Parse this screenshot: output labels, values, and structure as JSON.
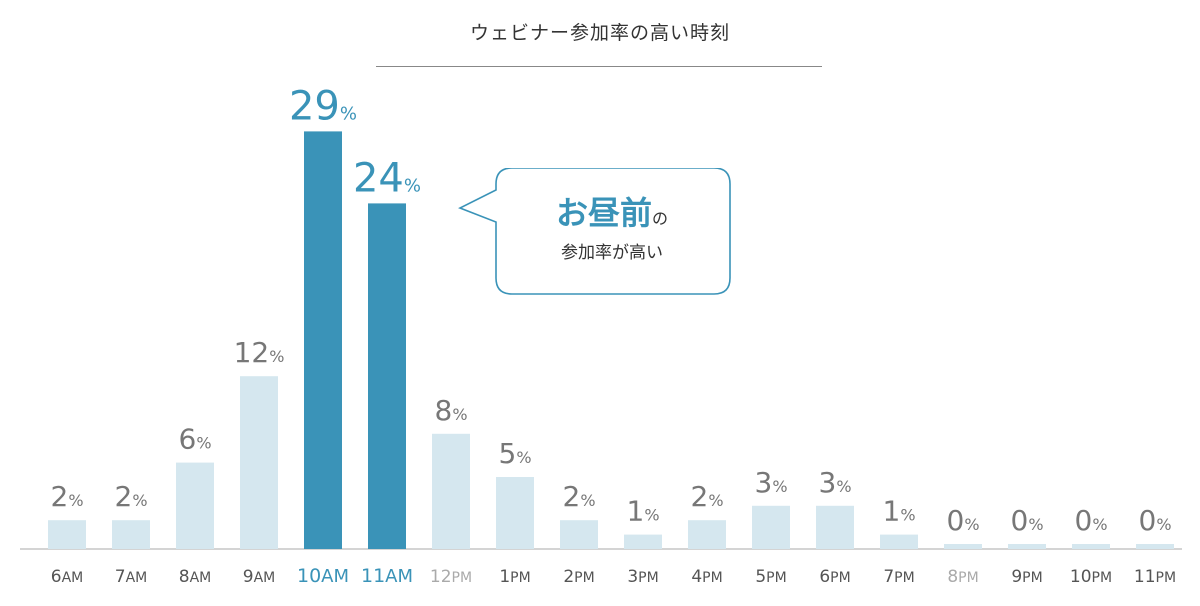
{
  "chart_data": {
    "type": "bar",
    "title": "ウェビナー参加率の高い時刻",
    "categories": [
      "6AM",
      "7AM",
      "8AM",
      "9AM",
      "10AM",
      "11AM",
      "12PM",
      "1PM",
      "2PM",
      "3PM",
      "4PM",
      "5PM",
      "6PM",
      "7PM",
      "8PM",
      "9PM",
      "10PM",
      "11PM"
    ],
    "category_labels": [
      {
        "num": "6",
        "suffix": "AM"
      },
      {
        "num": "7",
        "suffix": "AM"
      },
      {
        "num": "8",
        "suffix": "AM"
      },
      {
        "num": "9",
        "suffix": "AM"
      },
      {
        "num": "10",
        "suffix": "AM"
      },
      {
        "num": "11",
        "suffix": "AM"
      },
      {
        "num": "12",
        "suffix": "PM"
      },
      {
        "num": "1",
        "suffix": "PM"
      },
      {
        "num": "2",
        "suffix": "PM"
      },
      {
        "num": "3",
        "suffix": "PM"
      },
      {
        "num": "4",
        "suffix": "PM"
      },
      {
        "num": "5",
        "suffix": "PM"
      },
      {
        "num": "6",
        "suffix": "PM"
      },
      {
        "num": "7",
        "suffix": "PM"
      },
      {
        "num": "8",
        "suffix": "PM"
      },
      {
        "num": "9",
        "suffix": "PM"
      },
      {
        "num": "10",
        "suffix": "PM"
      },
      {
        "num": "11",
        "suffix": "PM"
      }
    ],
    "values": [
      2,
      2,
      6,
      12,
      29,
      24,
      8,
      5,
      2,
      1,
      2,
      3,
      3,
      1,
      0,
      0,
      0,
      0
    ],
    "value_suffix": "%",
    "highlighted": [
      "10AM",
      "11AM"
    ],
    "ylim": [
      0,
      29
    ],
    "xlabel": "",
    "ylabel": "",
    "grid": false,
    "colors": {
      "bar": "#d5e7ef",
      "bar_highlight": "#3a93b8",
      "label": "#777777",
      "label_highlight": "#3a93b8",
      "tick": "#555555",
      "tick_muted": "#aaaaaa",
      "axis": "#aaaaaa"
    },
    "muted_ticks": [
      "12PM",
      "8PM"
    ]
  },
  "callout": {
    "emphasis": "お昼前",
    "particle": "の",
    "line2": "参加率が高い",
    "border_color": "#3a93b8"
  }
}
